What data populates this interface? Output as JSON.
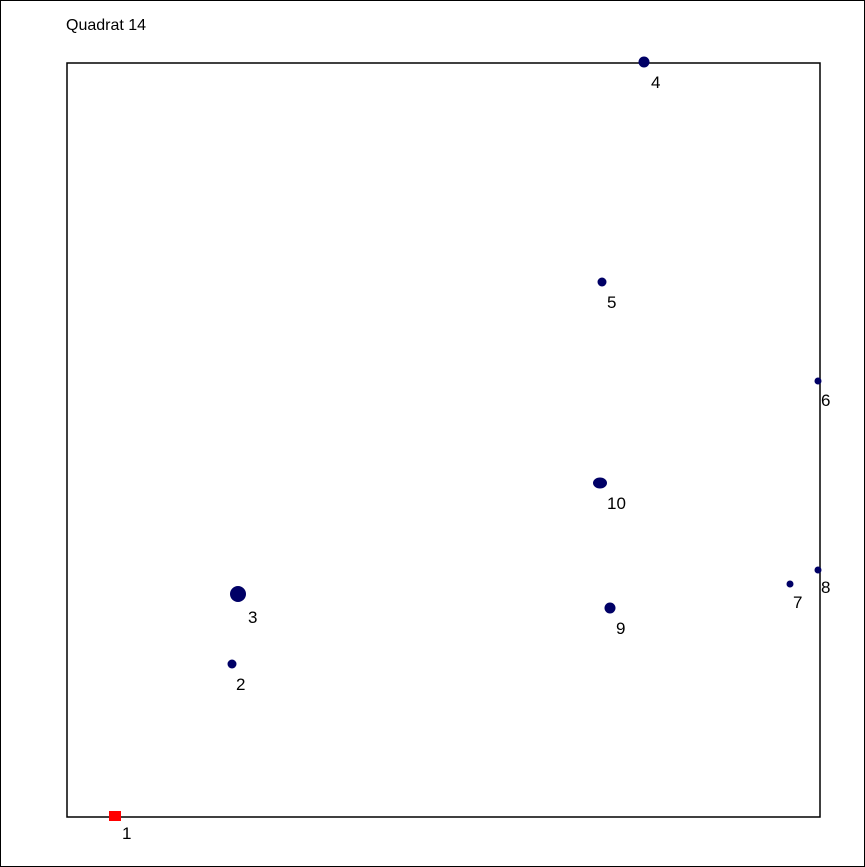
{
  "title": "Quadrat 14",
  "colors": {
    "point": "#000066",
    "marker": "#ff0000",
    "frame": "#000000"
  },
  "points": [
    {
      "label": "1",
      "kind": "square-marker"
    },
    {
      "label": "2",
      "size": "small"
    },
    {
      "label": "3",
      "size": "large"
    },
    {
      "label": "4",
      "size": "medium"
    },
    {
      "label": "5",
      "size": "small"
    },
    {
      "label": "6",
      "size": "tiny"
    },
    {
      "label": "7",
      "size": "tiny"
    },
    {
      "label": "8",
      "size": "tiny"
    },
    {
      "label": "9",
      "size": "medium"
    },
    {
      "label": "10",
      "size": "medium-wide"
    }
  ]
}
